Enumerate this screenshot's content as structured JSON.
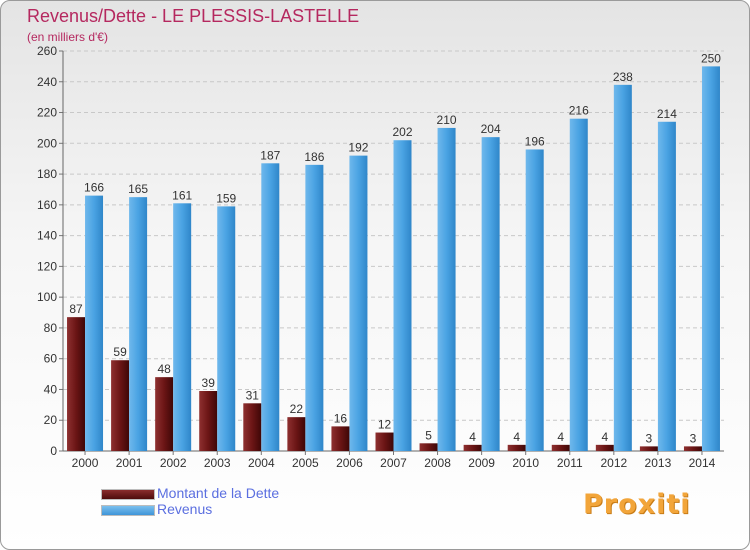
{
  "title": "Revenus/Dette - LE PLESSIS-LASTELLE",
  "subtitle": "(en milliers d'€)",
  "logo_text": "Proxiti",
  "colors": {
    "accent": "#b5285f",
    "dette": "#6b1717",
    "revenus": "#4aa3e3",
    "legend_text": "#5b6fe0"
  },
  "chart_data": {
    "type": "bar",
    "title": "Revenus/Dette - LE PLESSIS-LASTELLE",
    "ylabel": "(en milliers d'€)",
    "xlabel": "",
    "ylim": [
      0,
      260
    ],
    "yticks": [
      0,
      20,
      40,
      60,
      80,
      100,
      120,
      140,
      160,
      180,
      200,
      220,
      240,
      260
    ],
    "grid": true,
    "legend_position": "bottom-left",
    "categories": [
      "2000",
      "2001",
      "2002",
      "2003",
      "2004",
      "2005",
      "2006",
      "2007",
      "2008",
      "2009",
      "2010",
      "2011",
      "2012",
      "2013",
      "2014"
    ],
    "series": [
      {
        "name": "Montant de la Dette",
        "values": [
          87,
          59,
          48,
          39,
          31,
          22,
          16,
          12,
          5,
          4,
          4,
          4,
          4,
          3,
          3
        ]
      },
      {
        "name": "Revenus",
        "values": [
          166,
          165,
          161,
          159,
          187,
          186,
          192,
          202,
          210,
          204,
          196,
          216,
          238,
          214,
          250
        ]
      }
    ]
  }
}
